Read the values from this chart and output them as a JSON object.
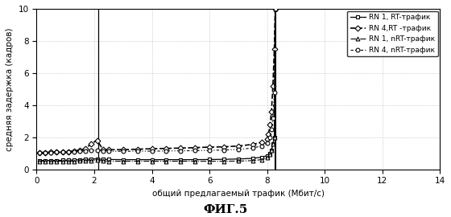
{
  "title": "ФИГ.5",
  "xlabel": "общий предлагаемый трафик (Мбит/с)",
  "ylabel": "средняя задержка (кадров)",
  "xlim": [
    0,
    14
  ],
  "ylim": [
    0,
    10
  ],
  "xticks": [
    0,
    2,
    4,
    6,
    8,
    10,
    12,
    14
  ],
  "yticks": [
    0,
    2,
    4,
    6,
    8,
    10
  ],
  "vline_x": 2.15,
  "vline2_x": 8.3,
  "legend": [
    "RN 1, RT-трафик",
    "RN 4,RT -трафик",
    "RN 1, nRT-трафик",
    "RN 4, nRT-трафик"
  ],
  "rn1_rt_x": [
    0.1,
    0.3,
    0.5,
    0.7,
    0.9,
    1.1,
    1.3,
    1.5,
    1.7,
    1.9,
    2.1,
    2.3,
    2.5,
    3.0,
    3.5,
    4.0,
    4.5,
    5.0,
    5.5,
    6.0,
    6.5,
    7.0,
    7.5,
    7.8,
    8.0,
    8.1,
    8.15,
    8.2,
    8.25,
    8.28
  ],
  "rn1_rt_y": [
    0.55,
    0.55,
    0.55,
    0.55,
    0.56,
    0.57,
    0.58,
    0.6,
    0.62,
    0.63,
    0.65,
    0.62,
    0.61,
    0.6,
    0.6,
    0.6,
    0.6,
    0.6,
    0.6,
    0.61,
    0.62,
    0.64,
    0.68,
    0.75,
    0.85,
    1.0,
    1.2,
    1.6,
    2.0,
    10.0
  ],
  "rn4_rt_x": [
    0.1,
    0.3,
    0.5,
    0.7,
    0.9,
    1.1,
    1.3,
    1.5,
    1.7,
    1.9,
    2.1,
    2.3,
    2.5,
    3.0,
    3.5,
    4.0,
    4.5,
    5.0,
    5.5,
    6.0,
    6.5,
    7.0,
    7.5,
    7.8,
    8.0,
    8.05,
    8.1,
    8.15,
    8.2,
    8.25,
    8.28
  ],
  "rn4_rt_y": [
    1.05,
    1.05,
    1.06,
    1.08,
    1.09,
    1.1,
    1.15,
    1.2,
    1.28,
    1.6,
    1.8,
    1.25,
    1.22,
    1.22,
    1.25,
    1.28,
    1.3,
    1.32,
    1.35,
    1.38,
    1.4,
    1.45,
    1.55,
    1.68,
    1.9,
    2.2,
    2.8,
    3.6,
    5.2,
    7.5,
    10.0
  ],
  "rn1_nrt_x": [
    0.1,
    0.3,
    0.5,
    0.7,
    0.9,
    1.1,
    1.3,
    1.5,
    1.7,
    1.9,
    2.1,
    2.3,
    2.5,
    3.0,
    3.5,
    4.0,
    4.5,
    5.0,
    5.5,
    6.0,
    6.5,
    7.0,
    7.5,
    7.8,
    8.0,
    8.1,
    8.15,
    8.2,
    8.25,
    8.28
  ],
  "rn1_nrt_y": [
    0.5,
    0.5,
    0.5,
    0.5,
    0.5,
    0.5,
    0.5,
    0.51,
    0.53,
    0.55,
    0.58,
    0.52,
    0.5,
    0.5,
    0.5,
    0.5,
    0.5,
    0.5,
    0.5,
    0.5,
    0.5,
    0.51,
    0.54,
    0.6,
    0.72,
    0.95,
    1.2,
    1.6,
    2.0,
    10.0
  ],
  "rn4_nrt_x": [
    0.1,
    0.3,
    0.5,
    0.7,
    0.9,
    1.1,
    1.3,
    1.5,
    1.7,
    1.9,
    2.1,
    2.3,
    2.5,
    3.0,
    3.5,
    4.0,
    4.5,
    5.0,
    5.5,
    6.0,
    6.5,
    7.0,
    7.5,
    7.8,
    8.0,
    8.1,
    8.15,
    8.2,
    8.25,
    8.28
  ],
  "rn4_nrt_y": [
    1.05,
    1.05,
    1.05,
    1.06,
    1.07,
    1.08,
    1.1,
    1.12,
    1.15,
    1.18,
    1.2,
    1.15,
    1.12,
    1.12,
    1.13,
    1.13,
    1.14,
    1.15,
    1.16,
    1.18,
    1.2,
    1.24,
    1.32,
    1.45,
    1.65,
    2.0,
    2.5,
    3.2,
    4.8,
    10.0
  ]
}
